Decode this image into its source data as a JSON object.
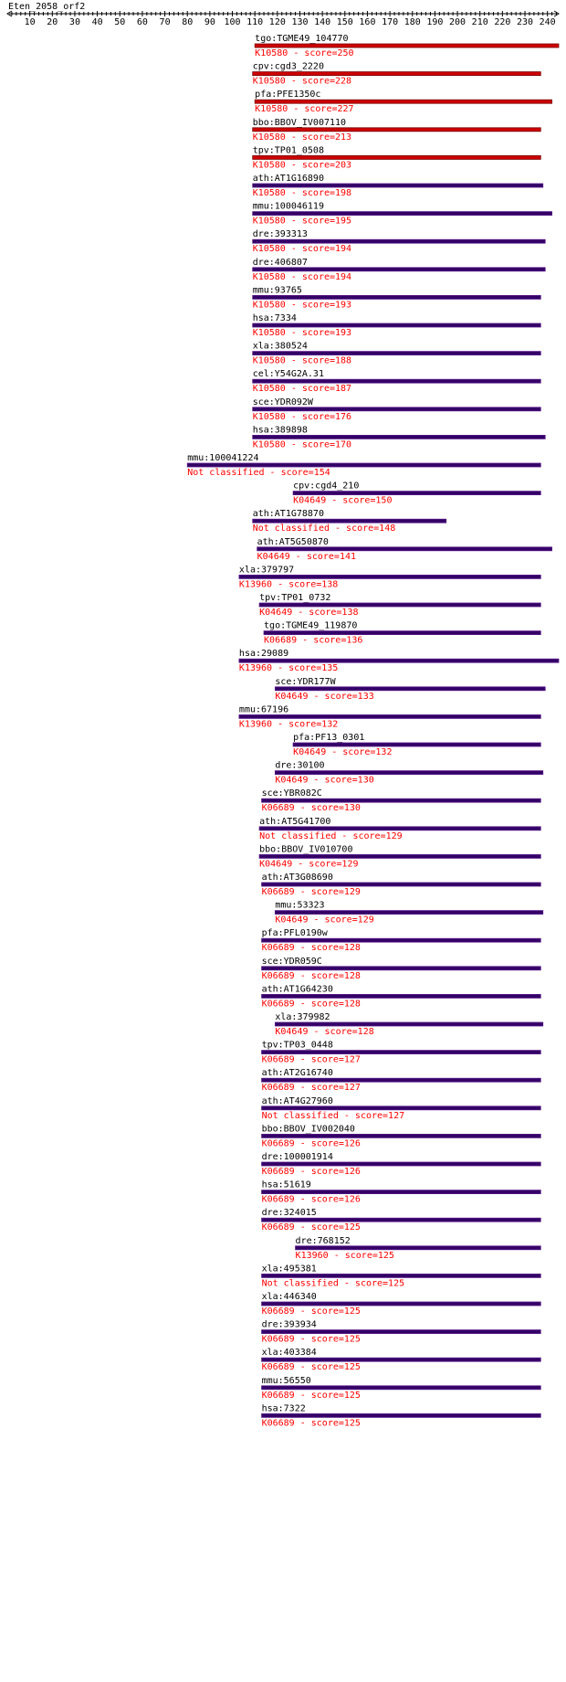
{
  "title": "Eten_2058_orf2",
  "ruler": {
    "max": 245,
    "labels": [
      "10",
      "20",
      "30",
      "40",
      "50",
      "60",
      "70",
      "80",
      "90",
      "100",
      "110",
      "120",
      "130",
      "140",
      "150",
      "160",
      "170",
      "180",
      "190",
      "200",
      "210",
      "220",
      "230",
      "240"
    ]
  },
  "colors": {
    "hit_red": "#cc0000",
    "hit_purple": "#330066",
    "bar_edge": "#5a1a8a",
    "label_red": "#ff0000",
    "text": "#000000"
  },
  "hits": [
    {
      "name": "tgo:TGME49_104770",
      "ko": "K10580 - score=250",
      "start": 110,
      "end": 245,
      "color": "red"
    },
    {
      "name": "cpv:cgd3_2220",
      "ko": "K10580 - score=228",
      "start": 109,
      "end": 237,
      "color": "red"
    },
    {
      "name": "pfa:PFE1350c",
      "ko": "K10580 - score=227",
      "start": 110,
      "end": 242,
      "color": "red"
    },
    {
      "name": "bbo:BBOV_IV007110",
      "ko": "K10580 - score=213",
      "start": 109,
      "end": 237,
      "color": "red"
    },
    {
      "name": "tpv:TP01_0508",
      "ko": "K10580 - score=203",
      "start": 109,
      "end": 237,
      "color": "red"
    },
    {
      "name": "ath:AT1G16890",
      "ko": "K10580 - score=198",
      "start": 109,
      "end": 238,
      "color": "purple"
    },
    {
      "name": "mmu:100046119",
      "ko": "K10580 - score=195",
      "start": 109,
      "end": 242,
      "color": "purple"
    },
    {
      "name": "dre:393313",
      "ko": "K10580 - score=194",
      "start": 109,
      "end": 239,
      "color": "purple"
    },
    {
      "name": "dre:406807",
      "ko": "K10580 - score=194",
      "start": 109,
      "end": 239,
      "color": "purple"
    },
    {
      "name": "mmu:93765",
      "ko": "K10580 - score=193",
      "start": 109,
      "end": 237,
      "color": "purple"
    },
    {
      "name": "hsa:7334",
      "ko": "K10580 - score=193",
      "start": 109,
      "end": 237,
      "color": "purple"
    },
    {
      "name": "xla:380524",
      "ko": "K10580 - score=188",
      "start": 109,
      "end": 237,
      "color": "purple"
    },
    {
      "name": "cel:Y54G2A.31",
      "ko": "K10580 - score=187",
      "start": 109,
      "end": 237,
      "color": "purple"
    },
    {
      "name": "sce:YDR092W",
      "ko": "K10580 - score=176",
      "start": 109,
      "end": 237,
      "color": "purple"
    },
    {
      "name": "hsa:389898",
      "ko": "K10580 - score=170",
      "start": 109,
      "end": 239,
      "color": "purple"
    },
    {
      "name": "mmu:100041224",
      "ko": "Not classified - score=154",
      "start": 80,
      "end": 237,
      "color": "purple"
    },
    {
      "name": "cpv:cgd4_210",
      "ko": "K04649 - score=150",
      "start": 127,
      "end": 237,
      "color": "purple"
    },
    {
      "name": "ath:AT1G78870",
      "ko": "Not classified - score=148",
      "start": 109,
      "end": 195,
      "color": "purple"
    },
    {
      "name": "ath:AT5G50870",
      "ko": "K04649 - score=141",
      "start": 111,
      "end": 242,
      "color": "purple"
    },
    {
      "name": "xla:379797",
      "ko": "K13960 - score=138",
      "start": 103,
      "end": 237,
      "color": "purple"
    },
    {
      "name": "tpv:TP01_0732",
      "ko": "K04649 - score=138",
      "start": 112,
      "end": 237,
      "color": "purple"
    },
    {
      "name": "tgo:TGME49_119870",
      "ko": "K06689 - score=136",
      "start": 114,
      "end": 237,
      "color": "purple"
    },
    {
      "name": "hsa:29089",
      "ko": "K13960 - score=135",
      "start": 103,
      "end": 245,
      "color": "purple"
    },
    {
      "name": "sce:YDR177W",
      "ko": "K04649 - score=133",
      "start": 119,
      "end": 239,
      "color": "purple"
    },
    {
      "name": "mmu:67196",
      "ko": "K13960 - score=132",
      "start": 103,
      "end": 237,
      "color": "purple"
    },
    {
      "name": "pfa:PF13_0301",
      "ko": "K04649 - score=132",
      "start": 127,
      "end": 237,
      "color": "purple"
    },
    {
      "name": "dre:30100",
      "ko": "K04649 - score=130",
      "start": 119,
      "end": 238,
      "color": "purple"
    },
    {
      "name": "sce:YBR082C",
      "ko": "K06689 - score=130",
      "start": 113,
      "end": 237,
      "color": "purple"
    },
    {
      "name": "ath:AT5G41700",
      "ko": "Not classified - score=129",
      "start": 112,
      "end": 237,
      "color": "purple"
    },
    {
      "name": "bbo:BBOV_IV010700",
      "ko": "K04649 - score=129",
      "start": 112,
      "end": 237,
      "color": "purple"
    },
    {
      "name": "ath:AT3G08690",
      "ko": "K06689 - score=129",
      "start": 113,
      "end": 237,
      "color": "purple"
    },
    {
      "name": "mmu:53323",
      "ko": "K04649 - score=129",
      "start": 119,
      "end": 238,
      "color": "purple"
    },
    {
      "name": "pfa:PFL0190w",
      "ko": "K06689 - score=128",
      "start": 113,
      "end": 237,
      "color": "purple"
    },
    {
      "name": "sce:YDR059C",
      "ko": "K06689 - score=128",
      "start": 113,
      "end": 237,
      "color": "purple"
    },
    {
      "name": "ath:AT1G64230",
      "ko": "K06689 - score=128",
      "start": 113,
      "end": 237,
      "color": "purple"
    },
    {
      "name": "xla:379982",
      "ko": "K04649 - score=128",
      "start": 119,
      "end": 238,
      "color": "purple"
    },
    {
      "name": "tpv:TP03_0448",
      "ko": "K06689 - score=127",
      "start": 113,
      "end": 237,
      "color": "purple"
    },
    {
      "name": "ath:AT2G16740",
      "ko": "K06689 - score=127",
      "start": 113,
      "end": 237,
      "color": "purple"
    },
    {
      "name": "ath:AT4G27960",
      "ko": "Not classified - score=127",
      "start": 113,
      "end": 237,
      "color": "purple"
    },
    {
      "name": "bbo:BBOV_IV002040",
      "ko": "K06689 - score=126",
      "start": 113,
      "end": 237,
      "color": "purple"
    },
    {
      "name": "dre:100001914",
      "ko": "K06689 - score=126",
      "start": 113,
      "end": 237,
      "color": "purple"
    },
    {
      "name": "hsa:51619",
      "ko": "K06689 - score=126",
      "start": 113,
      "end": 237,
      "color": "purple"
    },
    {
      "name": "dre:324015",
      "ko": "K06689 - score=125",
      "start": 113,
      "end": 237,
      "color": "purple"
    },
    {
      "name": "dre:768152",
      "ko": "K13960 - score=125",
      "start": 128,
      "end": 237,
      "color": "purple"
    },
    {
      "name": "xla:495381",
      "ko": "Not classified - score=125",
      "start": 113,
      "end": 237,
      "color": "purple"
    },
    {
      "name": "xla:446340",
      "ko": "K06689 - score=125",
      "start": 113,
      "end": 237,
      "color": "purple"
    },
    {
      "name": "dre:393934",
      "ko": "K06689 - score=125",
      "start": 113,
      "end": 237,
      "color": "purple"
    },
    {
      "name": "xla:403384",
      "ko": "K06689 - score=125",
      "start": 113,
      "end": 237,
      "color": "purple"
    },
    {
      "name": "mmu:56550",
      "ko": "K06689 - score=125",
      "start": 113,
      "end": 237,
      "color": "purple"
    },
    {
      "name": "hsa:7322",
      "ko": "K06689 - score=125",
      "start": 113,
      "end": 237,
      "color": "purple"
    }
  ]
}
